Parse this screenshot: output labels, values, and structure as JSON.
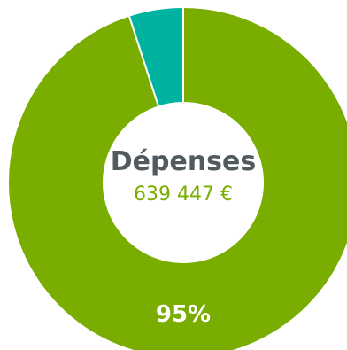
{
  "chart_data": {
    "type": "pie",
    "donut": true,
    "title": "",
    "center": {
      "title": "Dépenses",
      "value": "639 447 €"
    },
    "slices": [
      {
        "value": 95,
        "color": "#79ad00",
        "label": "95%"
      },
      {
        "value": 5,
        "color": "#00b3a0",
        "label": ""
      }
    ],
    "start_angle_deg": 0,
    "direction": "clockwise",
    "slice_stroke_color": "#ffffff"
  }
}
